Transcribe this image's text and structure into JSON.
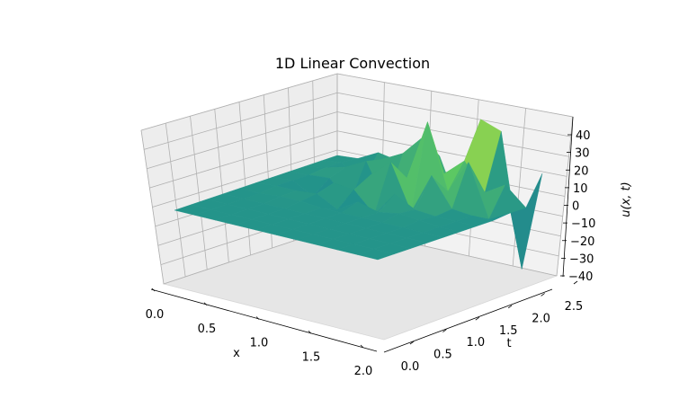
{
  "chart_data": {
    "type": "surface",
    "title": "1D Linear Convection",
    "xlabel": "x",
    "ylabel": "t",
    "zlabel": "u(x, t)",
    "xlim": [
      0.0,
      2.0
    ],
    "ylim": [
      0.0,
      2.5
    ],
    "zlim": [
      -42,
      45
    ],
    "x_ticks": [
      "0.0",
      "0.5",
      "1.0",
      "1.5",
      "2.0"
    ],
    "y_ticks": [
      "0.0",
      "0.5",
      "1.0",
      "1.5",
      "2.0",
      "2.5"
    ],
    "z_ticks": [
      "40",
      "30",
      "20",
      "10",
      "0",
      "−10",
      "−20",
      "−30",
      "−40"
    ],
    "grid": true,
    "colormap": "viridis",
    "x": [
      0.0,
      0.2,
      0.4,
      0.6,
      0.8,
      1.0,
      1.2,
      1.4,
      1.6,
      1.8,
      2.0
    ],
    "t": [
      0.0,
      0.25,
      0.5,
      0.75,
      1.0,
      1.25,
      1.5,
      1.75,
      2.0,
      2.25,
      2.5
    ],
    "u": [
      [
        1,
        1,
        1,
        1,
        1,
        1,
        1,
        1,
        1,
        1,
        1
      ],
      [
        1,
        1,
        1,
        1,
        1,
        1,
        1,
        1,
        1,
        1,
        1
      ],
      [
        1,
        1,
        1,
        1,
        1,
        1,
        1,
        1,
        1,
        1,
        1
      ],
      [
        1,
        1,
        1,
        1,
        1,
        1,
        1,
        1,
        1,
        1,
        1
      ],
      [
        1,
        1,
        2,
        2,
        1,
        1,
        1,
        1,
        1,
        1,
        1
      ],
      [
        1,
        2,
        2,
        3,
        -3,
        4,
        1,
        3,
        2,
        1,
        1
      ],
      [
        1,
        2,
        -4,
        6,
        5,
        -6,
        8,
        2,
        1,
        1,
        1
      ],
      [
        1,
        2,
        3,
        -8,
        10,
        20,
        -5,
        18,
        2,
        1,
        1
      ],
      [
        1,
        3,
        6,
        12,
        -10,
        8,
        42,
        6,
        25,
        -4,
        2
      ],
      [
        1,
        3,
        -6,
        10,
        16,
        28,
        10,
        20,
        5,
        12,
        2
      ],
      [
        1,
        2,
        8,
        6,
        15,
        14,
        -14,
        40,
        36,
        -38,
        18
      ]
    ]
  }
}
